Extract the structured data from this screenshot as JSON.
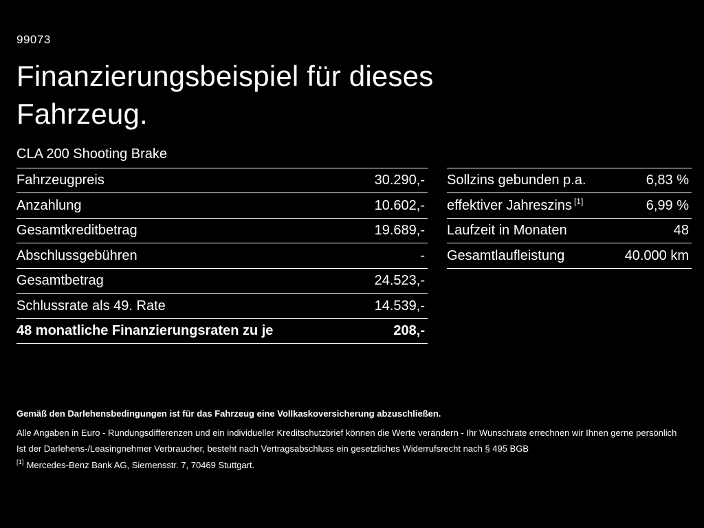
{
  "page": {
    "id_number": "99073",
    "title": "Finanzierungsbeispiel für dieses Fahrzeug.",
    "model": "CLA 200 Shooting Brake",
    "background_color": "#000000",
    "text_color": "#ffffff"
  },
  "finance_table": {
    "rows": [
      {
        "label": "Fahrzeugpreis",
        "value": "30.290,-"
      },
      {
        "label": "Anzahlung",
        "value": "10.602,-"
      },
      {
        "label": "Gesamtkreditbetrag",
        "value": "19.689,-"
      },
      {
        "label": "Abschlussgebühren",
        "value": "-"
      },
      {
        "label": "Gesamtbetrag",
        "value": "24.523,-"
      },
      {
        "label": "Schlussrate als 49. Rate",
        "value": "14.539,-"
      },
      {
        "label": "48 monatliche Finanzierungsraten zu je",
        "value": "208,-"
      }
    ]
  },
  "conditions_table": {
    "rows": [
      {
        "label": "Sollzins gebunden p.a.",
        "value": "6,83 %"
      },
      {
        "label": "effektiver Jahreszins",
        "footnote": "[1]",
        "value": "6,99 %"
      },
      {
        "label": "Laufzeit in Monaten",
        "value": "48"
      },
      {
        "label": "Gesamtlaufleistung",
        "value": "40.000 km"
      }
    ]
  },
  "footer": {
    "insurance_note": "Gemäß den Darlehensbedingungen ist für das Fahrzeug eine Vollkaskoversicherung abzuschließen.",
    "note_line_1": "Alle Angaben in Euro - Rundungsdifferenzen und ein individueller Kreditschutzbrief können die Werte verändern - Ihr Wunschrate errechnen wir Ihnen gerne persönlich",
    "note_line_2": "Ist der Darlehens-/Leasingnehmer Verbraucher, besteht nach Vertragsabschluss ein gesetzliches Widerrufsrecht nach § 495 BGB",
    "footnote_marker": "[1]",
    "footnote_text": "Mercedes-Benz Bank AG, Siemensstr. 7, 70469 Stuttgart."
  }
}
